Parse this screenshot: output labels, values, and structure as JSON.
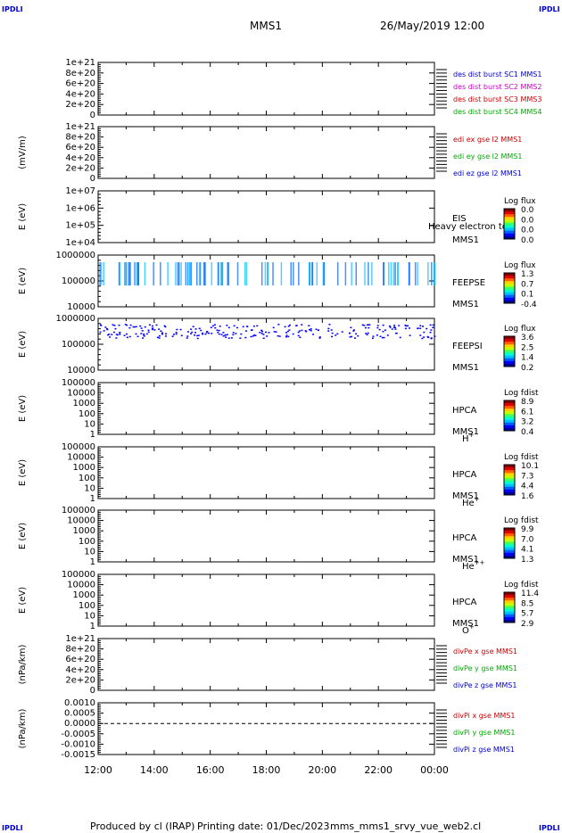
{
  "corner_label": "IPDLI",
  "header": {
    "mission": "MMS1",
    "datetime": "26/May/2019 12:00"
  },
  "footer": {
    "produced_by": "Produced by cl (IRAP)",
    "printing_date": "Printing date: 01/Dec/2023",
    "filename": "mms_mms1_srvy_vue_web2.cl"
  },
  "time_axis": [
    "12:00",
    "14:00",
    "16:00",
    "18:00",
    "20:00",
    "22:00",
    "00:00"
  ],
  "chart_data": [
    {
      "type": "line",
      "id": "dist",
      "ylabel": "",
      "yticks": [
        "1e+21",
        "8e+20",
        "6e+20",
        "4e+20",
        "2e+20",
        "0"
      ],
      "ylim": [
        0,
        1e+21
      ],
      "series": [
        {
          "name": "des dist burst SC1 MMS1",
          "color": "#0000cc",
          "values": []
        },
        {
          "name": "des dist burst SC2 MMS2",
          "color": "#cc00cc",
          "values": []
        },
        {
          "name": "des dist burst SC3 MMS3",
          "color": "#cc0000",
          "values": []
        },
        {
          "name": "des dist burst SC4 MMS4",
          "color": "#00aa00",
          "values": []
        }
      ],
      "reference_line": 0
    },
    {
      "type": "line",
      "id": "edi",
      "ylabel": "(mV/m)",
      "yticks": [
        "1e+21",
        "8e+20",
        "6e+20",
        "4e+20",
        "2e+20",
        "0"
      ],
      "ylim": [
        0,
        1e+21
      ],
      "series": [
        {
          "name": "edi ex gse l2 MMS1",
          "color": "#cc0000",
          "values": []
        },
        {
          "name": "edi ey gse l2 MMS1",
          "color": "#00aa00",
          "values": []
        },
        {
          "name": "edi ez gse l2 MMS1",
          "color": "#0000cc",
          "values": []
        }
      ],
      "reference_line": 0
    },
    {
      "type": "heatmap",
      "id": "eis",
      "ylabel": "E (eV)",
      "yticks": [
        "1e+07",
        "1e+06",
        "1e+05",
        "1e+04"
      ],
      "ylim": [
        10000,
        10000000
      ],
      "log": true,
      "instrument": [
        "EIS",
        "MMS1"
      ],
      "overlay_text": "Heavy electron to",
      "colorbar": {
        "title": "Log flux",
        "ticks": [
          "0.0",
          "0.0",
          "0.0",
          "0.0"
        ]
      },
      "coverage": null
    },
    {
      "type": "heatmap",
      "id": "feepse",
      "ylabel": "E (eV)",
      "yticks": [
        "1000000",
        "100000",
        "10000"
      ],
      "ylim": [
        10000,
        1000000
      ],
      "log": true,
      "instrument": [
        "FEEPSE",
        "MMS1"
      ],
      "colorbar": {
        "title": "Log flux",
        "ticks": [
          "1.3",
          "0.7",
          "0.1",
          "-0.4"
        ]
      },
      "coverage": [
        "12:00",
        "00:00"
      ]
    },
    {
      "type": "heatmap",
      "id": "feepsi",
      "ylabel": "E (eV)",
      "yticks": [
        "1000000",
        "100000",
        "10000"
      ],
      "ylim": [
        10000,
        1000000
      ],
      "log": true,
      "instrument": [
        "FEEPSI",
        "MMS1"
      ],
      "colorbar": {
        "title": "Log flux",
        "ticks": [
          "3.6",
          "2.5",
          "1.4",
          "0.2"
        ]
      },
      "coverage": [
        "12:00",
        "00:00"
      ]
    },
    {
      "type": "heatmap",
      "id": "hpca-h",
      "ylabel": "E (eV)",
      "yticks": [
        "100000",
        "10000",
        "1000",
        "100",
        "10",
        "1"
      ],
      "ylim": [
        1,
        100000
      ],
      "log": true,
      "instrument": [
        "HPCA",
        "MMS1"
      ],
      "species": "H",
      "charge": "+",
      "colorbar": {
        "title": "Log fdist",
        "ticks": [
          "8.9",
          "6.1",
          "3.2",
          "0.4"
        ]
      },
      "coverage": [
        "23:00",
        "00:00"
      ]
    },
    {
      "type": "heatmap",
      "id": "hpca-he",
      "ylabel": "E (eV)",
      "yticks": [
        "100000",
        "10000",
        "1000",
        "100",
        "10",
        "1"
      ],
      "ylim": [
        1,
        100000
      ],
      "log": true,
      "instrument": [
        "HPCA",
        "MMS1"
      ],
      "species": "He",
      "charge": "+",
      "colorbar": {
        "title": "Log fdist",
        "ticks": [
          "10.1",
          "7.3",
          "4.4",
          "1.6"
        ]
      },
      "coverage": [
        "23:00",
        "00:00"
      ]
    },
    {
      "type": "heatmap",
      "id": "hpca-he2",
      "ylabel": "E (eV)",
      "yticks": [
        "100000",
        "10000",
        "1000",
        "100",
        "10",
        "1"
      ],
      "ylim": [
        1,
        100000
      ],
      "log": true,
      "instrument": [
        "HPCA",
        "MMS1"
      ],
      "species": "He",
      "charge": "++",
      "colorbar": {
        "title": "Log fdist",
        "ticks": [
          "9.9",
          "7.0",
          "4.1",
          "1.3"
        ]
      },
      "coverage": [
        "23:00",
        "00:00"
      ]
    },
    {
      "type": "heatmap",
      "id": "hpca-o",
      "ylabel": "E (eV)",
      "yticks": [
        "100000",
        "10000",
        "1000",
        "100",
        "10",
        "1"
      ],
      "ylim": [
        1,
        100000
      ],
      "log": true,
      "instrument": [
        "HPCA",
        "MMS1"
      ],
      "species": "O",
      "charge": "+",
      "colorbar": {
        "title": "Log fdist",
        "ticks": [
          "11.4",
          "8.5",
          "5.7",
          "2.9"
        ]
      },
      "coverage": [
        "23:00",
        "00:00"
      ]
    },
    {
      "type": "line",
      "id": "divpe",
      "ylabel": "(nPa/km)",
      "yticks": [
        "1e+21",
        "8e+20",
        "6e+20",
        "4e+20",
        "2e+20",
        "0"
      ],
      "ylim": [
        0,
        1e+21
      ],
      "series": [
        {
          "name": "divPe x gse MMS1",
          "color": "#cc0000",
          "values": []
        },
        {
          "name": "divPe y gse MMS1",
          "color": "#00aa00",
          "values": []
        },
        {
          "name": "divPe z gse MMS1",
          "color": "#0000cc",
          "values": []
        }
      ],
      "reference_line": 0
    },
    {
      "type": "line",
      "id": "divpi",
      "ylabel": "(nPa/km)",
      "yticks": [
        "0.0010",
        "0.0005",
        "0.0000",
        "-0.0005",
        "-0.0010",
        "-0.0015"
      ],
      "ylim": [
        -0.0015,
        0.001
      ],
      "series": [
        {
          "name": "divPi x gse MMS1",
          "color": "#cc0000",
          "values": []
        },
        {
          "name": "divPi y gse MMS1",
          "color": "#00aa00",
          "values": []
        },
        {
          "name": "divPi z gse MMS1",
          "color": "#0000cc",
          "values": []
        }
      ],
      "coverage": [
        "23:30",
        "00:00"
      ],
      "reference_line": 0
    }
  ]
}
